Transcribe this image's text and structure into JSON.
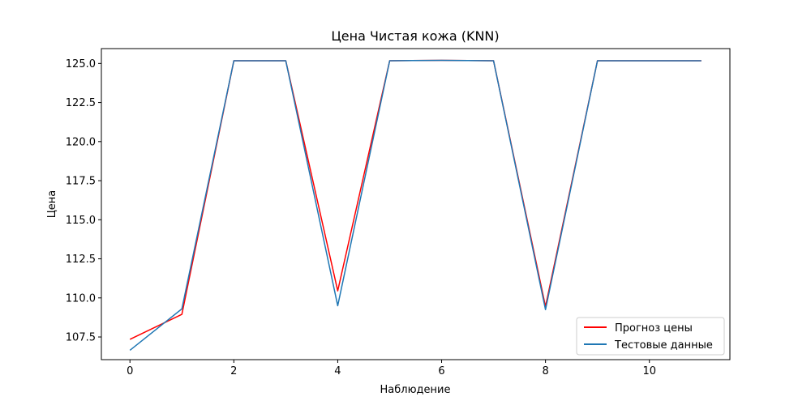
{
  "chart_data": {
    "type": "line",
    "title": "Цена Чистая кожа  (KNN)",
    "xlabel": "Наблюдение",
    "ylabel": "Цена",
    "x": [
      0,
      1,
      2,
      3,
      4,
      5,
      6,
      7,
      8,
      9,
      10,
      11
    ],
    "xlim": [
      -0.55,
      11.55
    ],
    "ylim": [
      106.05,
      125.95
    ],
    "xticks": [
      0,
      2,
      4,
      6,
      8,
      10
    ],
    "xtick_labels": [
      "0",
      "2",
      "4",
      "6",
      "8",
      "10"
    ],
    "yticks": [
      107.5,
      110.0,
      112.5,
      115.0,
      117.5,
      120.0,
      122.5,
      125.0
    ],
    "ytick_labels": [
      "107.5",
      "110.0",
      "112.5",
      "115.0",
      "117.5",
      "120.0",
      "122.5",
      "125.0"
    ],
    "grid": false,
    "legend_position": "lower-right",
    "series": [
      {
        "name": "Прогноз цены",
        "color": "#ff0000",
        "values": [
          107.35,
          108.95,
          125.17,
          125.17,
          110.45,
          125.17,
          125.2,
          125.17,
          109.45,
          125.17,
          125.17,
          125.17
        ]
      },
      {
        "name": "Тестовые данные",
        "color": "#1f77b4",
        "values": [
          106.65,
          109.3,
          125.17,
          125.17,
          109.5,
          125.17,
          125.2,
          125.17,
          109.25,
          125.17,
          125.17,
          125.17
        ]
      }
    ]
  }
}
